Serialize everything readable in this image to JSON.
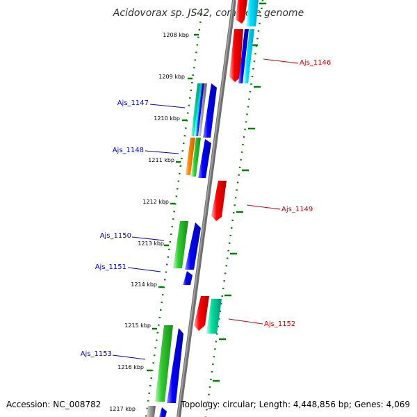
{
  "title": "Acidovorax sp. JS42, complete genome",
  "footer": {
    "accession": "Accession: NC_008782",
    "stats": "Topology: circular; Length: 4,448,856 bp; Genes: 4,069"
  },
  "colors": {
    "forward": "#cc0000",
    "reverse": "#0000cc",
    "backbone": "#777777",
    "tick": "#008000"
  },
  "kbp_labels": [
    "1208 kbp",
    "1209 kbp",
    "1210 kbp",
    "1211 kbp",
    "1212 kbp",
    "1213 kbp",
    "1214 kbp",
    "1215 kbp",
    "1216 kbp",
    "1217 kbp"
  ],
  "gene_labels": {
    "ajs_1146": "Ajs_1146",
    "ajs_1147": "Ajs_1147",
    "ajs_1148": "Ajs_1148",
    "ajs_1149": "Ajs_1149",
    "ajs_1150": "Ajs_1150",
    "ajs_1151": "Ajs_1151",
    "ajs_1152": "Ajs_1152",
    "ajs_1153": "Ajs_1153"
  }
}
